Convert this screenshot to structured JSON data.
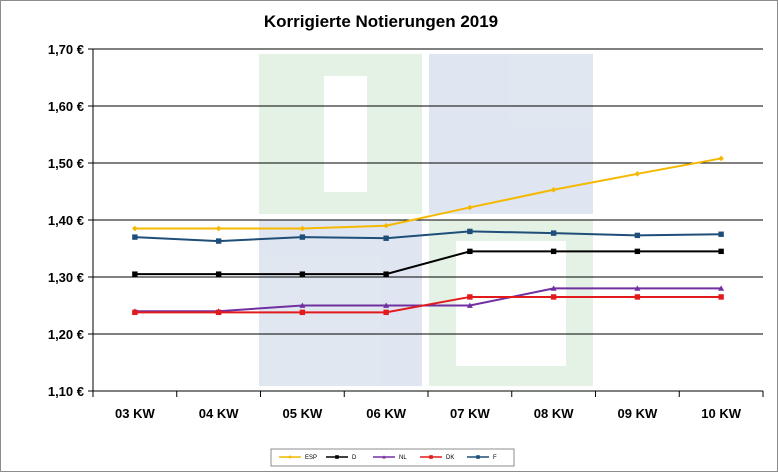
{
  "chart_data": {
    "type": "line",
    "title": "Korrigierte Notierungen 2019",
    "xlabel": "",
    "ylabel": "",
    "categories": [
      "03 KW",
      "04 KW",
      "05 KW",
      "06 KW",
      "07 KW",
      "08 KW",
      "09 KW",
      "10 KW"
    ],
    "ylim": [
      1.1,
      1.7
    ],
    "yticks": [
      "1,10 €",
      "1,20 €",
      "1,30 €",
      "1,40 €",
      "1,50 €",
      "1,60 €",
      "1,70 €"
    ],
    "ytick_values": [
      1.1,
      1.2,
      1.3,
      1.4,
      1.5,
      1.6,
      1.7
    ],
    "grid": true,
    "legend_position": "bottom",
    "series": [
      {
        "name": "ESP",
        "color": "#f5b800",
        "marker": "diamond",
        "values": [
          1.385,
          1.385,
          1.385,
          1.39,
          1.422,
          1.453,
          1.481,
          1.508
        ]
      },
      {
        "name": "D",
        "color": "#000000",
        "marker": "square",
        "values": [
          1.305,
          1.305,
          1.305,
          1.305,
          1.345,
          1.345,
          1.345,
          1.345
        ]
      },
      {
        "name": "NL",
        "color": "#7030a0",
        "marker": "triangle",
        "values": [
          1.24,
          1.24,
          1.25,
          1.25,
          1.25,
          1.28,
          1.28,
          1.28
        ]
      },
      {
        "name": "DK",
        "color": "#e31a1c",
        "marker": "square",
        "values": [
          1.238,
          1.238,
          1.238,
          1.238,
          1.265,
          1.265,
          1.265,
          1.265
        ]
      },
      {
        "name": "F",
        "color": "#1f4e79",
        "marker": "square",
        "values": [
          1.37,
          1.363,
          1.37,
          1.368,
          1.38,
          1.377,
          1.373,
          1.375
        ]
      }
    ]
  }
}
